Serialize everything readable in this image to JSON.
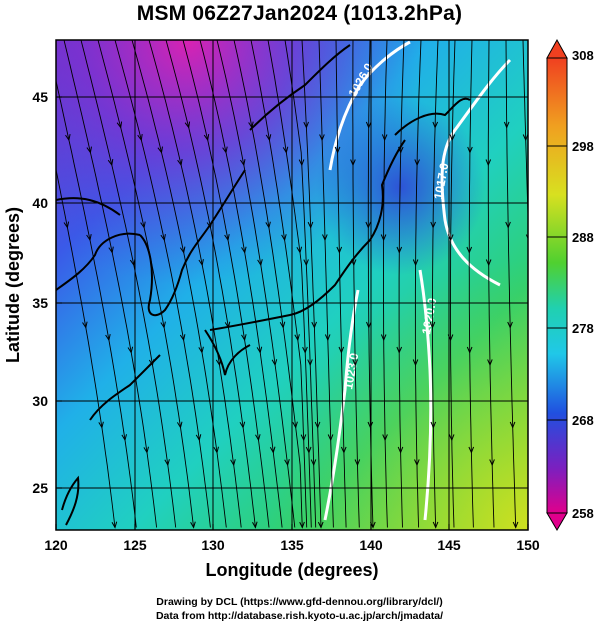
{
  "title": "MSM 06Z27Jan2024 (1013.2hPa)",
  "map": {
    "x_ticks": [
      "120",
      "125",
      "130",
      "135",
      "140",
      "145",
      "150"
    ],
    "y_ticks": [
      "25",
      "30",
      "35",
      "40",
      "45"
    ],
    "x_axis_title": "Longitude (degrees)",
    "y_axis_title": "Latitude  (degrees)",
    "lon_range": [
      120,
      150
    ],
    "lat_range": [
      22.5,
      47.5
    ],
    "isobar_labels": [
      "1026.0",
      "1017.0",
      "1020.0",
      "1023.0"
    ]
  },
  "colorbar": {
    "labels": [
      "308",
      "298",
      "288",
      "278",
      "268",
      "258"
    ],
    "range": [
      258,
      308
    ],
    "colors": [
      "#e0008c",
      "#7a1fc0",
      "#3040e0",
      "#1e90ff",
      "#20d0d0",
      "#20d070",
      "#60d020",
      "#c8e020",
      "#f0b020",
      "#f04020"
    ]
  },
  "credits": {
    "line1": "Drawing by DCL (https://www.gfd-dennou.org/library/dcl/)",
    "line2": "Data from http://database.rish.kyoto-u.ac.jp/arch/jmadata/"
  }
}
